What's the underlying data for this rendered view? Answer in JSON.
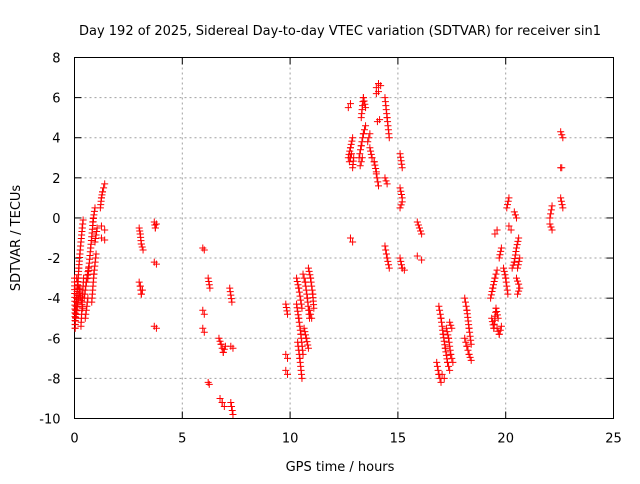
{
  "chart_data": {
    "type": "scatter",
    "title": "Day 192 of 2025, Sidereal Day-to-day VTEC variation (SDTVAR) for receiver sin1",
    "xlabel": "GPS time / hours",
    "ylabel": "SDTVAR / TECUs",
    "xlim": [
      0,
      25
    ],
    "ylim": [
      -10,
      8
    ],
    "xticks": [
      0,
      5,
      10,
      15,
      20,
      25
    ],
    "yticks": [
      -10,
      -8,
      -6,
      -4,
      -2,
      0,
      2,
      4,
      6,
      8
    ],
    "grid": true,
    "marker": "+",
    "series_color": "#ff0000",
    "series": [
      {
        "name": "SDTVAR",
        "segments": [
          [
            0.0,
            -3.0,
            0.03,
            -5.5
          ],
          [
            0.03,
            -5.5,
            0.06,
            -4.6
          ],
          [
            0.06,
            -4.6,
            0.1,
            -4.0
          ],
          [
            0.1,
            -4.0,
            0.13,
            -3.5
          ],
          [
            0.13,
            -3.5,
            0.17,
            -3.0
          ],
          [
            0.17,
            -3.0,
            0.2,
            -2.5
          ],
          [
            0.2,
            -2.5,
            0.25,
            -1.8
          ],
          [
            0.25,
            -1.8,
            0.3,
            -1.2
          ],
          [
            0.3,
            -1.2,
            0.36,
            -0.5
          ],
          [
            0.36,
            -0.5,
            0.4,
            -0.1
          ],
          [
            0.06,
            -5.0,
            0.25,
            -3.5
          ],
          [
            0.3,
            -5.4,
            0.42,
            -3.0
          ],
          [
            0.1,
            -3.0,
            0.38,
            -4.5
          ],
          [
            0.45,
            -4.0,
            0.55,
            -3.2
          ],
          [
            0.55,
            -3.2,
            0.65,
            -2.5
          ],
          [
            0.5,
            -5.0,
            0.62,
            -4.0
          ],
          [
            0.62,
            -3.0,
            0.75,
            -1.5
          ],
          [
            0.75,
            -1.5,
            0.88,
            0.0
          ],
          [
            0.85,
            -0.2,
            0.95,
            0.5
          ],
          [
            0.8,
            -4.2,
            0.9,
            -2.8
          ],
          [
            0.9,
            -2.8,
            1.0,
            -1.8
          ],
          [
            0.95,
            -1.2,
            1.05,
            -0.5
          ],
          [
            1.2,
            0.5,
            1.25,
            1.0
          ],
          [
            1.25,
            1.0,
            1.3,
            1.3
          ],
          [
            1.3,
            1.3,
            1.4,
            1.7
          ],
          [
            1.25,
            -0.4,
            1.4,
            -0.6
          ],
          [
            1.25,
            -1.0,
            1.4,
            -1.1
          ],
          [
            3.0,
            -0.5,
            3.05,
            -0.8
          ],
          [
            3.05,
            -0.8,
            3.1,
            -1.3
          ],
          [
            3.1,
            -1.3,
            3.18,
            -1.6
          ],
          [
            3.0,
            -3.2,
            3.05,
            -3.4
          ],
          [
            3.05,
            -3.4,
            3.1,
            -3.8
          ],
          [
            3.1,
            -3.8,
            3.15,
            -3.6
          ],
          [
            3.7,
            -0.2,
            3.75,
            -0.5
          ],
          [
            3.75,
            -0.5,
            3.8,
            -0.3
          ],
          [
            3.7,
            -2.2,
            3.8,
            -2.3
          ],
          [
            3.7,
            -5.4,
            3.8,
            -5.5
          ],
          [
            5.95,
            -1.5,
            6.02,
            -1.6
          ],
          [
            5.95,
            -4.6,
            6.02,
            -4.8
          ],
          [
            5.95,
            -5.5,
            6.02,
            -5.7
          ],
          [
            6.2,
            -3.0,
            6.28,
            -3.5
          ],
          [
            6.2,
            -8.2,
            6.25,
            -8.3
          ],
          [
            6.7,
            -6.0,
            6.8,
            -6.3
          ],
          [
            6.8,
            -6.3,
            6.9,
            -6.7
          ],
          [
            6.9,
            -6.7,
            7.0,
            -6.4
          ],
          [
            6.75,
            -9.0,
            6.85,
            -9.2
          ],
          [
            6.85,
            -9.2,
            6.95,
            -9.4
          ],
          [
            7.2,
            -3.5,
            7.3,
            -4.2
          ],
          [
            7.25,
            -6.4,
            7.35,
            -6.5
          ],
          [
            7.25,
            -9.2,
            7.35,
            -9.8
          ],
          [
            9.8,
            -4.3,
            9.88,
            -4.8
          ],
          [
            9.8,
            -6.8,
            9.88,
            -7.0
          ],
          [
            9.8,
            -7.6,
            9.88,
            -7.8
          ],
          [
            10.3,
            -4.3,
            10.4,
            -5.0
          ],
          [
            10.4,
            -5.0,
            10.5,
            -5.8
          ],
          [
            10.5,
            -5.8,
            10.6,
            -6.8
          ],
          [
            10.35,
            -6.2,
            10.45,
            -7.0
          ],
          [
            10.45,
            -7.0,
            10.55,
            -8.0
          ],
          [
            10.3,
            -3.0,
            10.4,
            -3.5
          ],
          [
            10.4,
            -3.5,
            10.55,
            -4.5
          ],
          [
            10.6,
            -2.8,
            10.7,
            -3.2
          ],
          [
            10.7,
            -3.2,
            10.8,
            -4.0
          ],
          [
            10.8,
            -4.0,
            10.9,
            -5.0
          ],
          [
            10.65,
            -5.5,
            10.75,
            -6.0
          ],
          [
            10.75,
            -6.0,
            10.85,
            -6.5
          ],
          [
            10.85,
            -2.5,
            10.95,
            -3.0
          ],
          [
            10.95,
            -3.0,
            11.05,
            -3.8
          ],
          [
            11.05,
            -3.8,
            11.1,
            -4.5
          ],
          [
            10.9,
            -4.6,
            11.0,
            -5.0
          ],
          [
            12.7,
            3.0,
            12.8,
            3.5
          ],
          [
            12.8,
            3.5,
            12.9,
            4.0
          ],
          [
            12.75,
            2.8,
            12.85,
            3.2
          ],
          [
            12.7,
            5.5,
            12.8,
            5.7
          ],
          [
            12.9,
            2.5,
            12.95,
            3.0
          ],
          [
            12.8,
            -1.0,
            12.9,
            -1.2
          ],
          [
            13.2,
            3.0,
            13.3,
            3.6
          ],
          [
            13.3,
            3.6,
            13.4,
            4.2
          ],
          [
            13.4,
            4.2,
            13.5,
            4.6
          ],
          [
            13.25,
            2.6,
            13.35,
            3.0
          ],
          [
            13.3,
            5.0,
            13.4,
            6.0
          ],
          [
            13.4,
            6.0,
            13.5,
            5.5
          ],
          [
            13.7,
            3.5,
            13.8,
            3.0
          ],
          [
            13.8,
            3.0,
            13.9,
            2.8
          ],
          [
            13.9,
            2.8,
            14.0,
            2.3
          ],
          [
            13.6,
            3.8,
            13.7,
            4.2
          ],
          [
            14.0,
            6.5,
            14.1,
            6.7
          ],
          [
            14.1,
            6.7,
            14.2,
            6.6
          ],
          [
            14.0,
            6.2,
            14.1,
            6.3
          ],
          [
            14.05,
            4.8,
            14.15,
            4.9
          ],
          [
            14.0,
            2.2,
            14.1,
            1.6
          ],
          [
            14.4,
            6.0,
            14.5,
            5.0
          ],
          [
            14.5,
            5.0,
            14.6,
            4.0
          ],
          [
            14.4,
            2.0,
            14.5,
            1.7
          ],
          [
            14.4,
            -1.4,
            14.5,
            -2.0
          ],
          [
            14.5,
            -2.0,
            14.6,
            -2.5
          ],
          [
            15.1,
            3.2,
            15.2,
            2.5
          ],
          [
            15.1,
            1.5,
            15.2,
            1.0
          ],
          [
            15.1,
            0.5,
            15.2,
            0.8
          ],
          [
            15.1,
            -2.0,
            15.2,
            -2.5
          ],
          [
            15.2,
            -2.5,
            15.3,
            -2.6
          ],
          [
            15.9,
            -0.2,
            16.0,
            -0.5
          ],
          [
            16.0,
            -0.5,
            16.1,
            -0.8
          ],
          [
            15.9,
            -1.9,
            16.1,
            -2.1
          ],
          [
            16.8,
            -7.2,
            16.9,
            -7.8
          ],
          [
            16.9,
            -7.8,
            17.0,
            -8.2
          ],
          [
            16.9,
            -4.4,
            17.0,
            -5.0
          ],
          [
            17.0,
            -5.0,
            17.1,
            -5.8
          ],
          [
            17.1,
            -5.8,
            17.2,
            -6.5
          ],
          [
            17.2,
            -6.5,
            17.3,
            -7.2
          ],
          [
            17.3,
            -7.2,
            17.4,
            -7.6
          ],
          [
            17.05,
            -7.8,
            17.15,
            -8.0
          ],
          [
            17.25,
            -5.5,
            17.35,
            -6.0
          ],
          [
            17.35,
            -6.0,
            17.45,
            -6.8
          ],
          [
            17.45,
            -6.8,
            17.55,
            -7.2
          ],
          [
            17.4,
            -5.2,
            17.5,
            -5.5
          ],
          [
            18.1,
            -4.0,
            18.2,
            -4.6
          ],
          [
            18.2,
            -4.6,
            18.3,
            -5.5
          ],
          [
            18.3,
            -5.5,
            18.4,
            -6.3
          ],
          [
            18.1,
            -6.0,
            18.2,
            -6.4
          ],
          [
            18.2,
            -6.4,
            18.3,
            -6.8
          ],
          [
            18.3,
            -6.8,
            18.4,
            -7.1
          ],
          [
            19.3,
            -4.0,
            19.4,
            -3.5
          ],
          [
            19.4,
            -3.5,
            19.5,
            -3.0
          ],
          [
            19.5,
            -3.0,
            19.6,
            -2.6
          ],
          [
            19.35,
            -5.0,
            19.45,
            -5.5
          ],
          [
            19.45,
            -5.5,
            19.55,
            -4.5
          ],
          [
            19.55,
            -4.5,
            19.65,
            -5.0
          ],
          [
            19.6,
            -5.5,
            19.7,
            -5.8
          ],
          [
            19.7,
            -5.8,
            19.8,
            -5.4
          ],
          [
            19.7,
            -2.0,
            19.8,
            -1.5
          ],
          [
            19.5,
            -0.8,
            19.6,
            -0.6
          ],
          [
            19.9,
            -2.5,
            20.0,
            -3.0
          ],
          [
            20.0,
            -3.0,
            20.1,
            -3.8
          ],
          [
            20.05,
            0.5,
            20.15,
            1.0
          ],
          [
            20.15,
            -0.4,
            20.25,
            -0.6
          ],
          [
            20.3,
            -2.5,
            20.4,
            -2.2
          ],
          [
            20.4,
            -2.2,
            20.5,
            -1.5
          ],
          [
            20.5,
            -1.5,
            20.6,
            -1.0
          ],
          [
            20.5,
            -3.0,
            20.6,
            -3.3
          ],
          [
            20.55,
            -2.5,
            20.65,
            -2.0
          ],
          [
            20.4,
            0.3,
            20.5,
            0.0
          ],
          [
            20.55,
            -3.8,
            20.65,
            -3.5
          ],
          [
            22.05,
            0.0,
            22.15,
            0.6
          ],
          [
            22.05,
            -0.3,
            22.15,
            -0.6
          ],
          [
            22.55,
            4.3,
            22.65,
            4.0
          ],
          [
            22.55,
            2.5,
            22.6,
            2.5
          ],
          [
            22.55,
            1.0,
            22.65,
            0.5
          ]
        ]
      }
    ]
  }
}
